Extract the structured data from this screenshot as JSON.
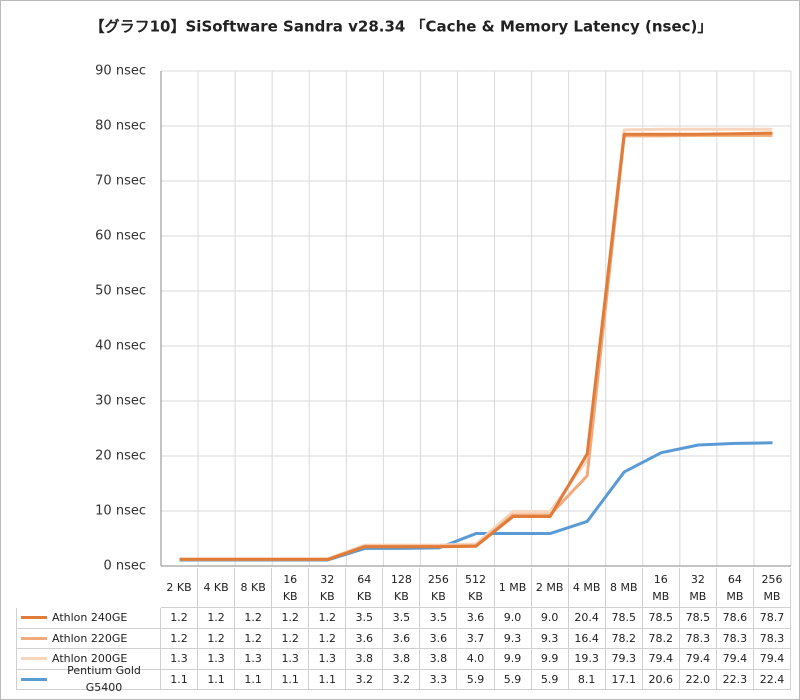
{
  "chart_data": {
    "type": "line",
    "title": "【グラフ10】SiSoftware Sandra v28.34 「Cache & Memory Latency (nsec)」",
    "categories": [
      "2 KB",
      "4 KB",
      "8 KB",
      "16 KB",
      "32 KB",
      "64 KB",
      "128 KB",
      "256 KB",
      "512 KB",
      "1 MB",
      "2 MB",
      "4 MB",
      "8 MB",
      "16 MB",
      "32 MB",
      "64 MB",
      "256 MB"
    ],
    "ylim": [
      0,
      90
    ],
    "yticks": [
      {
        "value": 0,
        "label": "0 nsec"
      },
      {
        "value": 10,
        "label": "10 nsec"
      },
      {
        "value": 20,
        "label": "20 nsec"
      },
      {
        "value": 30,
        "label": "30 nsec"
      },
      {
        "value": 40,
        "label": "40 nsec"
      },
      {
        "value": 50,
        "label": "50 nsec"
      },
      {
        "value": 60,
        "label": "60 nsec"
      },
      {
        "value": 70,
        "label": "70 nsec"
      },
      {
        "value": 80,
        "label": "80 nsec"
      },
      {
        "value": 90,
        "label": "90 nsec"
      }
    ],
    "grid": true,
    "series": [
      {
        "name": "Athlon 240GE",
        "color": "#e07b39",
        "values": [
          1.2,
          1.2,
          1.2,
          1.2,
          1.2,
          3.5,
          3.5,
          3.5,
          3.6,
          9.0,
          9.0,
          20.4,
          78.5,
          78.5,
          78.5,
          78.6,
          78.7
        ],
        "value_labels": [
          "1.2",
          "1.2",
          "1.2",
          "1.2",
          "1.2",
          "3.5",
          "3.5",
          "3.5",
          "3.6",
          "9.0",
          "9.0",
          "20.4",
          "78.5",
          "78.5",
          "78.5",
          "78.6",
          "78.7"
        ]
      },
      {
        "name": "Athlon 220GE",
        "color": "#f0aa7c",
        "values": [
          1.2,
          1.2,
          1.2,
          1.2,
          1.2,
          3.6,
          3.6,
          3.6,
          3.7,
          9.3,
          9.3,
          16.4,
          78.2,
          78.2,
          78.3,
          78.3,
          78.3
        ],
        "value_labels": [
          "1.2",
          "1.2",
          "1.2",
          "1.2",
          "1.2",
          "3.6",
          "3.6",
          "3.6",
          "3.7",
          "9.3",
          "9.3",
          "16.4",
          "78.2",
          "78.2",
          "78.3",
          "78.3",
          "78.3"
        ]
      },
      {
        "name": "Athlon 200GE",
        "color": "#f8d5be",
        "values": [
          1.3,
          1.3,
          1.3,
          1.3,
          1.3,
          3.8,
          3.8,
          3.8,
          4.0,
          9.9,
          9.9,
          19.3,
          79.3,
          79.4,
          79.4,
          79.4,
          79.4
        ],
        "value_labels": [
          "1.3",
          "1.3",
          "1.3",
          "1.3",
          "1.3",
          "3.8",
          "3.8",
          "3.8",
          "4.0",
          "9.9",
          "9.9",
          "19.3",
          "79.3",
          "79.4",
          "79.4",
          "79.4",
          "79.4"
        ]
      },
      {
        "name": "Pentium Gold G5400",
        "color": "#5b9bd5",
        "values": [
          1.1,
          1.1,
          1.1,
          1.1,
          1.1,
          3.2,
          3.2,
          3.3,
          5.9,
          5.9,
          5.9,
          8.1,
          17.1,
          20.6,
          22.0,
          22.3,
          22.4
        ],
        "value_labels": [
          "1.1",
          "1.1",
          "1.1",
          "1.1",
          "1.1",
          "3.2",
          "3.2",
          "3.3",
          "5.9",
          "5.9",
          "5.9",
          "8.1",
          "17.1",
          "20.6",
          "22.0",
          "22.3",
          "22.4"
        ]
      }
    ]
  }
}
